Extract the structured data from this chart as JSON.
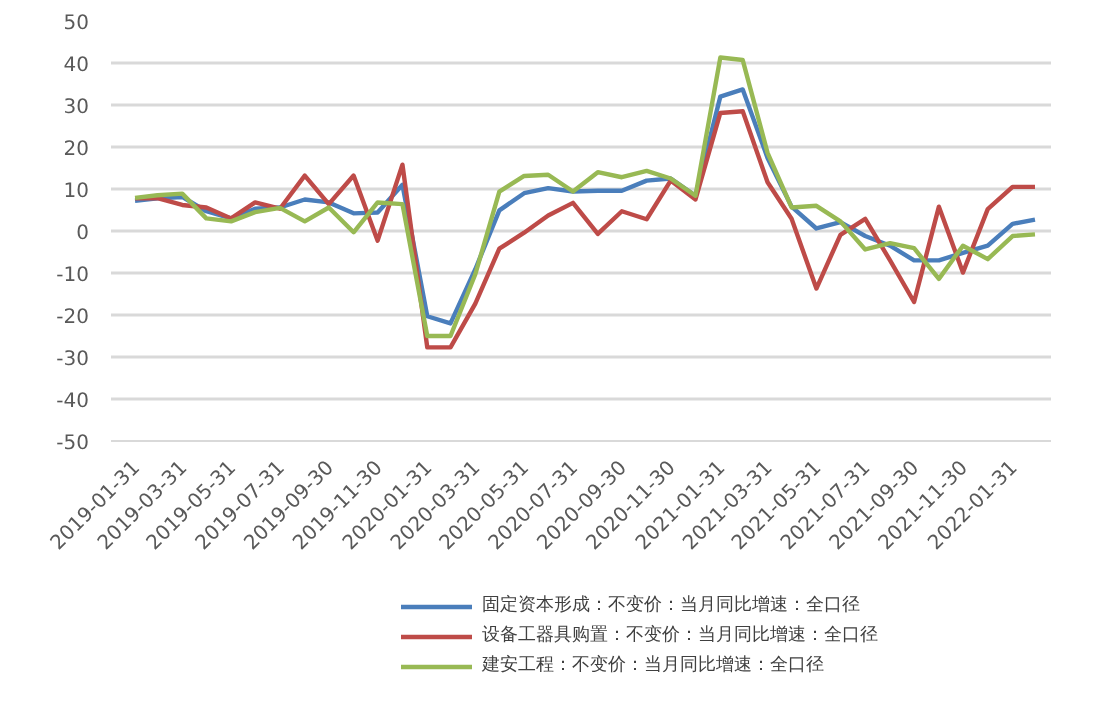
{
  "chart_data": {
    "type": "line",
    "x": [
      "2019-01-31",
      "2019-02-28",
      "2019-03-31",
      "2019-04-30",
      "2019-05-31",
      "2019-06-30",
      "2019-07-31",
      "2019-08-31",
      "2019-09-30",
      "2019-10-31",
      "2019-11-30",
      "2019-12-31",
      "2020-01-31",
      "2020-02-29",
      "2020-03-31",
      "2020-04-30",
      "2020-05-31",
      "2020-06-30",
      "2020-07-31",
      "2020-08-31",
      "2020-09-30",
      "2020-10-31",
      "2020-11-30",
      "2020-12-31",
      "2021-01-31",
      "2021-02-28",
      "2021-03-31",
      "2021-04-30",
      "2021-05-31",
      "2021-06-30",
      "2021-07-31",
      "2021-08-31",
      "2021-09-30",
      "2021-10-31",
      "2021-11-30",
      "2021-12-31",
      "2022-01-31",
      "2022-02-28"
    ],
    "series": [
      {
        "name": "固定资本形成：不变价：当月同比增速：全口径",
        "color": "#4a7ebb",
        "values": [
          7.2,
          7.8,
          8.1,
          4.7,
          3.0,
          5.3,
          5.6,
          7.5,
          6.8,
          4.2,
          4.4,
          11,
          -20.3,
          -22,
          -9.1,
          4.9,
          9.0,
          10.2,
          9.4,
          9.6,
          9.6,
          12,
          12.5,
          8.4,
          32,
          33.7,
          17.4,
          5.8,
          0.6,
          2.1,
          -1.2,
          -3.5,
          -7,
          -7,
          -5.2,
          -3.5,
          1.7,
          2.7
        ]
      },
      {
        "name": "设备工器具购置：不变价：当月同比增速：全口径",
        "color": "#be4b48",
        "values": [
          7.8,
          7.8,
          6.2,
          5.6,
          3.0,
          6.8,
          5.3,
          13.2,
          6.4,
          13.2,
          -2.3,
          15.8,
          -27.7,
          -27.7,
          -17.3,
          -4.2,
          -0.4,
          3.7,
          6.7,
          -0.7,
          4.7,
          2.8,
          12,
          7.5,
          28.1,
          28.5,
          11.6,
          2.9,
          -13.7,
          -0.9,
          2.9,
          -7,
          -16.9,
          5.8,
          -9.9,
          5.2,
          10.5,
          10.5
        ]
      },
      {
        "name": "建安工程：不变价：当月同比增速：全口径",
        "color": "#98b954",
        "values": [
          7.9,
          8.5,
          8.9,
          3.0,
          2.3,
          4.5,
          5.5,
          2.3,
          5.6,
          -0.3,
          6.8,
          6.4,
          -25,
          -25,
          -10.3,
          9.4,
          13.1,
          13.4,
          9.4,
          14,
          12.8,
          14.3,
          12.5,
          8.4,
          41.3,
          40.7,
          18.6,
          5.6,
          6,
          2.3,
          -4.4,
          -2.9,
          -4.1,
          -11.4,
          -3.5,
          -6.7,
          -1.2,
          -0.8
        ]
      }
    ],
    "ylim": [
      -50,
      50
    ],
    "yticks": [
      -50,
      -40,
      -30,
      -20,
      -10,
      0,
      10,
      20,
      30,
      40,
      50
    ],
    "xlim": [
      "2019-01-01",
      "2022-03-20"
    ],
    "xticks": [
      "2019-01-31",
      "2019-03-31",
      "2019-05-31",
      "2019-07-31",
      "2019-09-30",
      "2019-11-30",
      "2020-01-31",
      "2020-03-31",
      "2020-05-31",
      "2020-07-31",
      "2020-09-30",
      "2020-11-30",
      "2021-01-31",
      "2021-03-31",
      "2021-05-31",
      "2021-07-31",
      "2021-09-30",
      "2021-11-30",
      "2022-01-31"
    ],
    "grid": "y",
    "legend": "bottom",
    "marker": "none",
    "line_style": "solid"
  }
}
